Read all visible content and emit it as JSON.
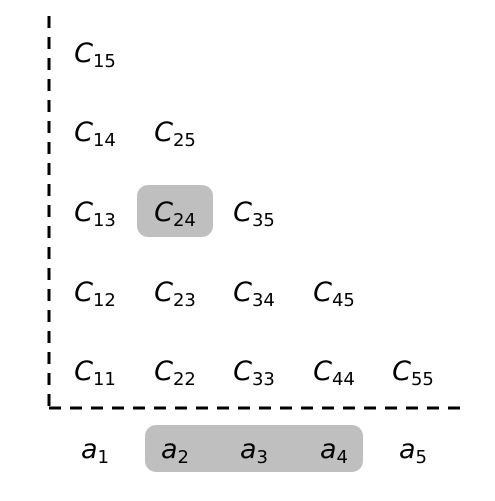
{
  "diagram": {
    "colors": {
      "axis": "#000000",
      "highlight": "#bfbfbf",
      "text": "#000000"
    },
    "cells": [
      {
        "base": "C",
        "sub": "15",
        "row": 5,
        "col": 1,
        "highlighted": false
      },
      {
        "base": "C",
        "sub": "14",
        "row": 4,
        "col": 1,
        "highlighted": false
      },
      {
        "base": "C",
        "sub": "25",
        "row": 4,
        "col": 2,
        "highlighted": false
      },
      {
        "base": "C",
        "sub": "13",
        "row": 3,
        "col": 1,
        "highlighted": false
      },
      {
        "base": "C",
        "sub": "24",
        "row": 3,
        "col": 2,
        "highlighted": true
      },
      {
        "base": "C",
        "sub": "35",
        "row": 3,
        "col": 3,
        "highlighted": false
      },
      {
        "base": "C",
        "sub": "12",
        "row": 2,
        "col": 1,
        "highlighted": false
      },
      {
        "base": "C",
        "sub": "23",
        "row": 2,
        "col": 2,
        "highlighted": false
      },
      {
        "base": "C",
        "sub": "34",
        "row": 2,
        "col": 3,
        "highlighted": false
      },
      {
        "base": "C",
        "sub": "45",
        "row": 2,
        "col": 4,
        "highlighted": false
      },
      {
        "base": "C",
        "sub": "11",
        "row": 1,
        "col": 1,
        "highlighted": false
      },
      {
        "base": "C",
        "sub": "22",
        "row": 1,
        "col": 2,
        "highlighted": false
      },
      {
        "base": "C",
        "sub": "33",
        "row": 1,
        "col": 3,
        "highlighted": false
      },
      {
        "base": "C",
        "sub": "44",
        "row": 1,
        "col": 4,
        "highlighted": false
      },
      {
        "base": "C",
        "sub": "55",
        "row": 1,
        "col": 5,
        "highlighted": false
      }
    ],
    "sequence": [
      {
        "base": "a",
        "sub": "1"
      },
      {
        "base": "a",
        "sub": "2"
      },
      {
        "base": "a",
        "sub": "3"
      },
      {
        "base": "a",
        "sub": "4"
      },
      {
        "base": "a",
        "sub": "5"
      }
    ],
    "sequence_highlight": {
      "from_index": 1,
      "to_index": 3
    }
  }
}
